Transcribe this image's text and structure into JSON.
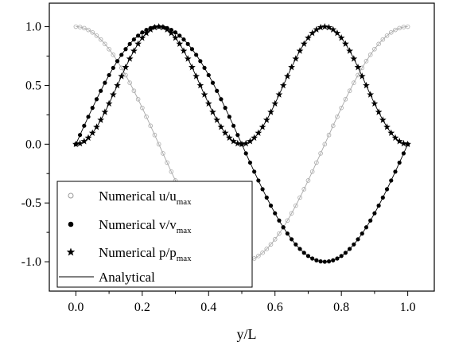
{
  "chart_data": {
    "type": "scatter",
    "xlabel": "y/L",
    "ylabel": "",
    "xlim": [
      -0.08,
      1.08
    ],
    "ylim": [
      -1.25,
      1.2
    ],
    "x_ticks": [
      "0.0",
      "0.2",
      "0.4",
      "0.6",
      "0.8",
      "1.0"
    ],
    "y_ticks": [
      "1.0",
      "0.5",
      "0.0",
      "-0.5",
      "-1.0"
    ],
    "legend_placement": "bottom-left",
    "legend": [
      {
        "text": "Numerical u/u",
        "sub": "max",
        "marker": "open-circle"
      },
      {
        "text": "Numerical v/v",
        "sub": "max",
        "marker": "filled-circle"
      },
      {
        "text": "Numerical p/p",
        "sub": "max",
        "marker": "star"
      },
      {
        "text": "Analytical",
        "sub": "",
        "marker": "line"
      }
    ],
    "series": [
      {
        "name": "Numerical u/umax",
        "formula": "cos(2*pi*y/L)",
        "marker": "open-circle",
        "color": "#b0b0b0",
        "x_range": [
          0,
          1
        ],
        "points": 81
      },
      {
        "name": "Numerical v/vmax",
        "formula": "sin(2*pi*y/L)",
        "marker": "filled-circle",
        "color": "#000000",
        "x_range": [
          0,
          1
        ],
        "points": 81
      },
      {
        "name": "Numerical p/pmax",
        "formula": "sin^2(2*pi*y/L)",
        "marker": "star",
        "color": "#000000",
        "x_range": [
          0,
          1
        ],
        "points": 81
      },
      {
        "name": "Analytical",
        "marker": "line",
        "color": "#000000"
      }
    ]
  }
}
